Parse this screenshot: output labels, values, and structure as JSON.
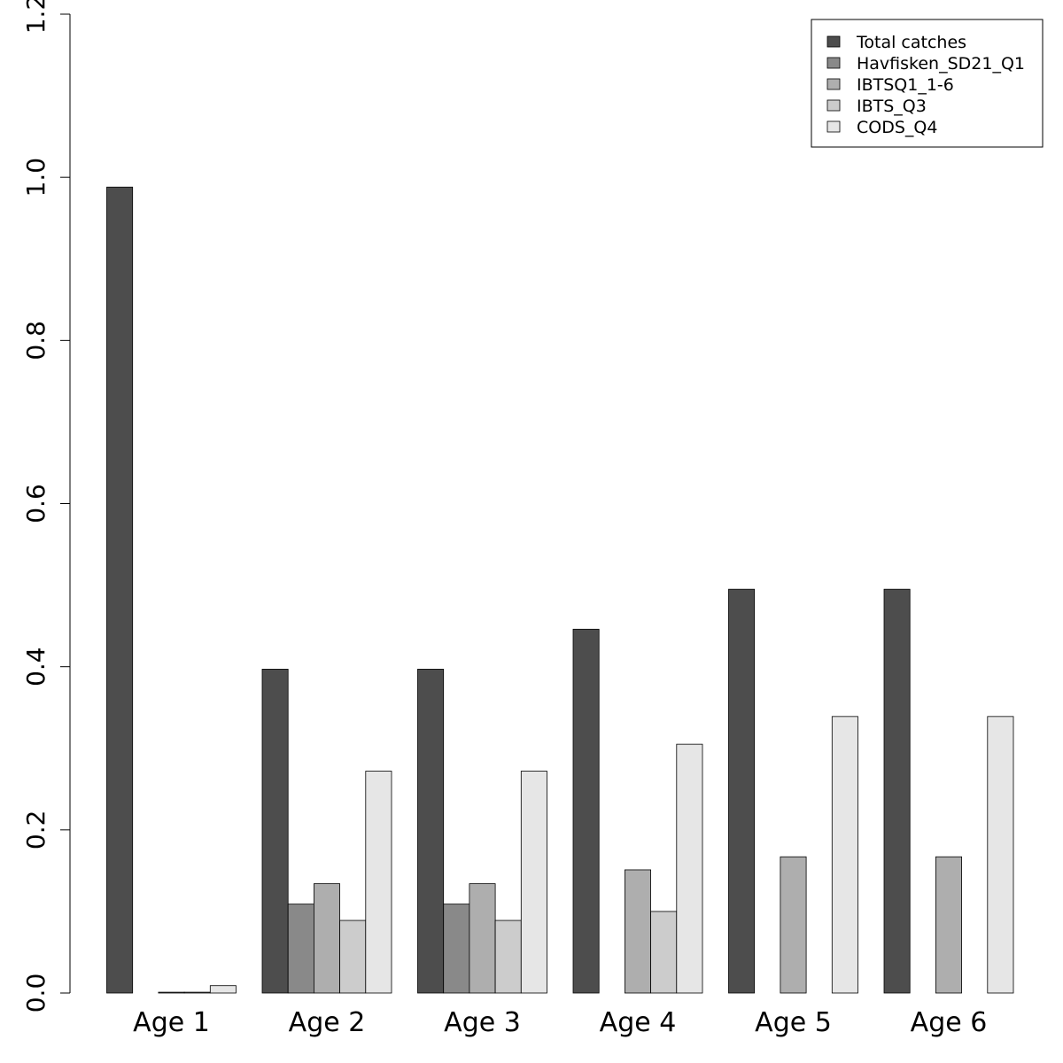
{
  "chart_data": {
    "type": "bar",
    "categories": [
      "Age 1",
      "Age 2",
      "Age 3",
      "Age 4",
      "Age 5",
      "Age 6"
    ],
    "series": [
      {
        "name": "Total catches",
        "color": "#4d4d4d",
        "values": [
          0.988,
          0.397,
          0.397,
          0.446,
          0.495,
          0.495
        ]
      },
      {
        "name": "Havfisken_SD21_Q1",
        "color": "#898989",
        "values": [
          0.0,
          0.109,
          0.109,
          0.0,
          0.0,
          0.0
        ]
      },
      {
        "name": "IBTSQ1_1-6",
        "color": "#aeaeae",
        "values": [
          0.001,
          0.134,
          0.134,
          0.151,
          0.167,
          0.167
        ]
      },
      {
        "name": "IBTS_Q3",
        "color": "#cccccc",
        "values": [
          0.001,
          0.089,
          0.089,
          0.1,
          0.0,
          0.0
        ]
      },
      {
        "name": "CODS_Q4",
        "color": "#e6e6e6",
        "values": [
          0.009,
          0.272,
          0.272,
          0.305,
          0.339,
          0.339
        ]
      }
    ],
    "yticks": [
      "0.0",
      "0.2",
      "0.4",
      "0.6",
      "0.8",
      "1.0",
      "1.2"
    ],
    "ylim": [
      0,
      1.2
    ],
    "legend_position": "top-right",
    "grid": false
  }
}
